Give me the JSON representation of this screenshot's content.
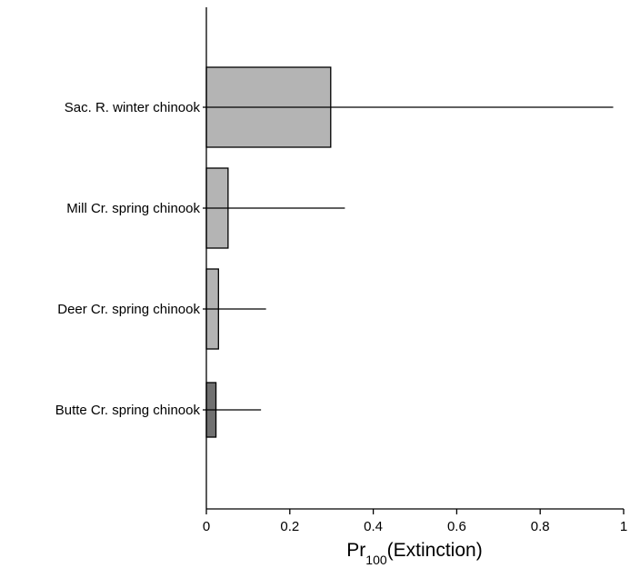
{
  "chart_data": {
    "type": "bar",
    "orientation": "horizontal",
    "categories": [
      "Sac. R. winter chinook",
      "Mill Cr. spring chinook",
      "Deer Cr. spring chinook",
      "Butte Cr. spring chinook"
    ],
    "values": [
      0.298,
      0.052,
      0.029,
      0.023
    ],
    "error_upper": [
      0.975,
      0.332,
      0.143,
      0.131
    ],
    "bar_colors": [
      "#b4b4b4",
      "#b4b4b4",
      "#b4b4b4",
      "#707070"
    ],
    "xlim": [
      0,
      1
    ],
    "xticks": [
      "0",
      "0.2",
      "0.4",
      "0.6",
      "0.8",
      "1"
    ],
    "xlabel": {
      "main_prefix": "Pr",
      "subscript": "100",
      "main_suffix": "(Extinction)"
    },
    "title": "",
    "grid": false,
    "legend": "none"
  }
}
